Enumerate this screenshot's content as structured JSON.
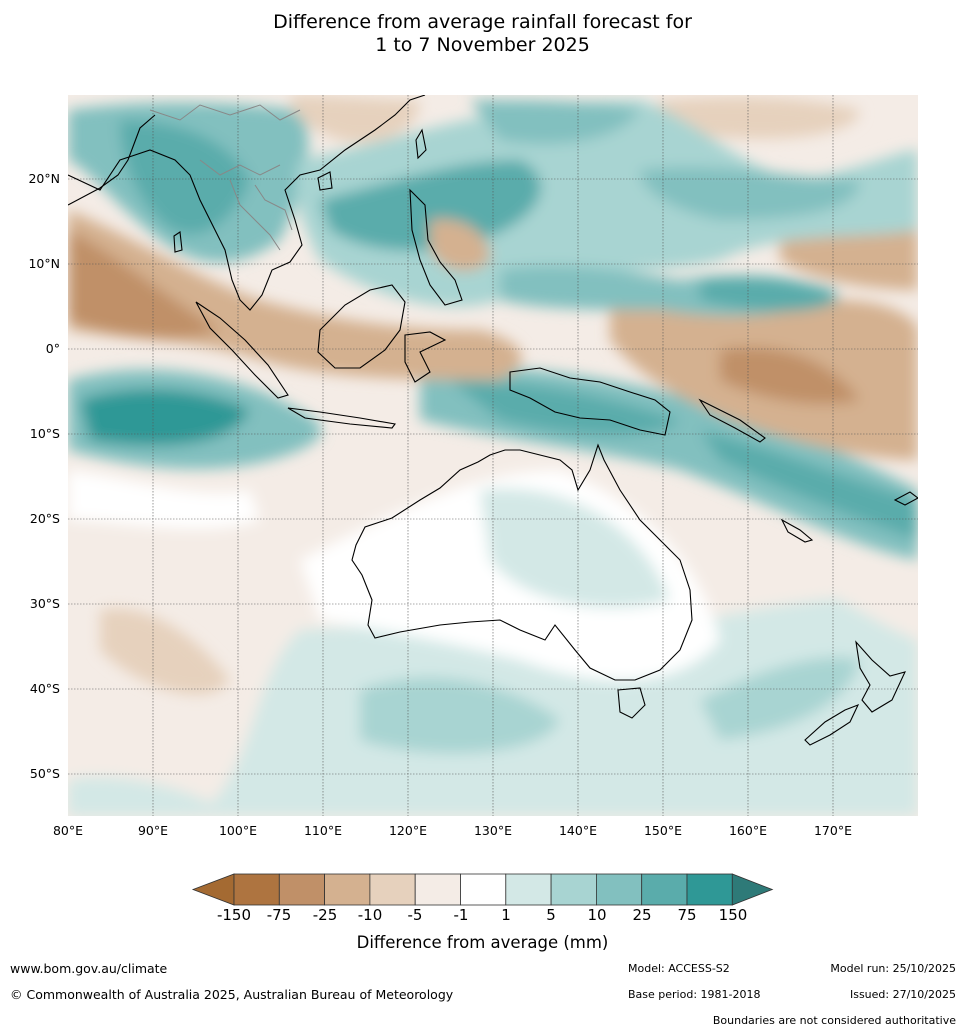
{
  "title": {
    "line1": "Difference from average rainfall forecast for",
    "line2": "1 to 7 November 2025"
  },
  "map": {
    "lat_labels": [
      "20°N",
      "10°N",
      "0°",
      "10°S",
      "20°S",
      "30°S",
      "40°S",
      "50°S"
    ],
    "lon_labels": [
      "80°E",
      "90°E",
      "100°E",
      "110°E",
      "120°E",
      "130°E",
      "140°E",
      "150°E",
      "160°E",
      "170°E"
    ],
    "region": "Indian Ocean, Maritime Continent, Australia, Western Pacific, New Zealand"
  },
  "colorbar": {
    "title": "Difference from average (mm)",
    "labels": [
      "-150",
      "-75",
      "-25",
      "-10",
      "-5",
      "-1",
      "1",
      "5",
      "10",
      "25",
      "75",
      "150"
    ],
    "colors": [
      "#a46a32",
      "#ae7440",
      "#c09068",
      "#d4b190",
      "#e6d1bd",
      "#f4ece6",
      "#ffffff",
      "#d3e8e6",
      "#a8d4d2",
      "#82c0bf",
      "#5aacab",
      "#2f9896",
      "#2e7a78"
    ],
    "extend_low_color": "#a46a32",
    "extend_high_color": "#2e7a78"
  },
  "footer": {
    "url": "www.bom.gov.au/climate",
    "copyright": "© Commonwealth of Australia 2025, Australian Bureau of Meteorology",
    "model": "Model: ACCESS-S2",
    "base_period": "Base period: 1981-2018",
    "model_run": "Model run: 25/10/2025",
    "issued": "Issued: 27/10/2025",
    "disclaimer": "Boundaries are not considered authoritative"
  }
}
